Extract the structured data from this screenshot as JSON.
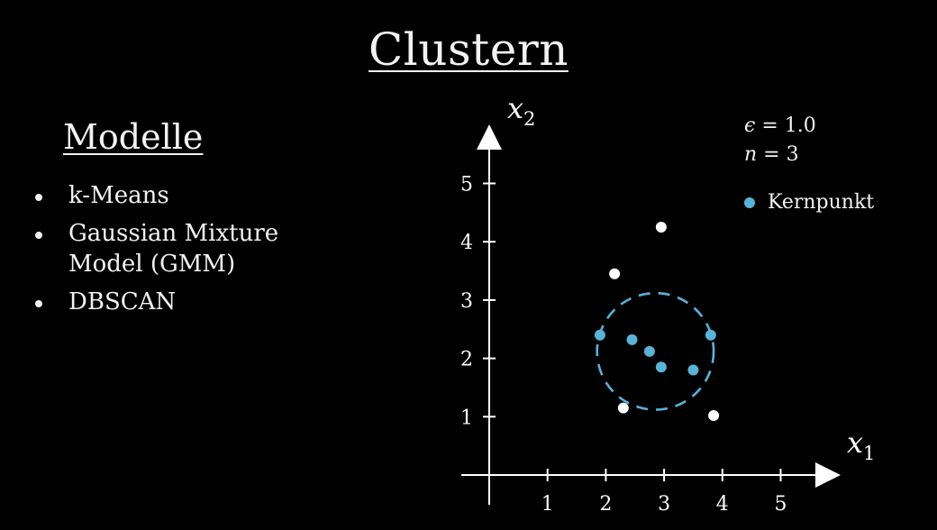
{
  "title": "Clustern",
  "models": {
    "heading": "Modelle",
    "items": [
      "k-Means",
      "Gaussian Mixture Model (GMM)",
      "DBSCAN"
    ]
  },
  "params": {
    "epsilon_symbol": "ϵ",
    "epsilon_value": "= 1.0",
    "n_symbol": "n",
    "n_value": "= 3"
  },
  "legend": {
    "label": "Kernpunkt",
    "color": "#58b3d8"
  },
  "colors": {
    "core": "#58b3d8",
    "other": "#ffffff",
    "circle": "#58b3d8",
    "axis": "#ffffff"
  },
  "chart_data": {
    "type": "scatter",
    "xlabel": "x1",
    "ylabel": "x2",
    "xlim": [
      0,
      5.5
    ],
    "ylim": [
      0,
      5.5
    ],
    "xticks": [
      1,
      2,
      3,
      4,
      5
    ],
    "yticks": [
      1,
      2,
      3,
      4,
      5
    ],
    "series": [
      {
        "name": "Kernpunkt",
        "color": "#58b3d8",
        "points": [
          [
            1.9,
            2.4
          ],
          [
            2.45,
            2.32
          ],
          [
            2.75,
            2.12
          ],
          [
            2.95,
            1.85
          ],
          [
            3.5,
            1.8
          ],
          [
            3.8,
            2.4
          ]
        ]
      },
      {
        "color": "#ffffff",
        "points": [
          [
            2.95,
            4.25
          ],
          [
            2.15,
            3.45
          ],
          [
            2.3,
            1.15
          ],
          [
            3.85,
            1.02
          ]
        ]
      }
    ],
    "epsilon_circle": {
      "center": [
        2.85,
        2.12
      ],
      "radius": 1.0
    }
  }
}
